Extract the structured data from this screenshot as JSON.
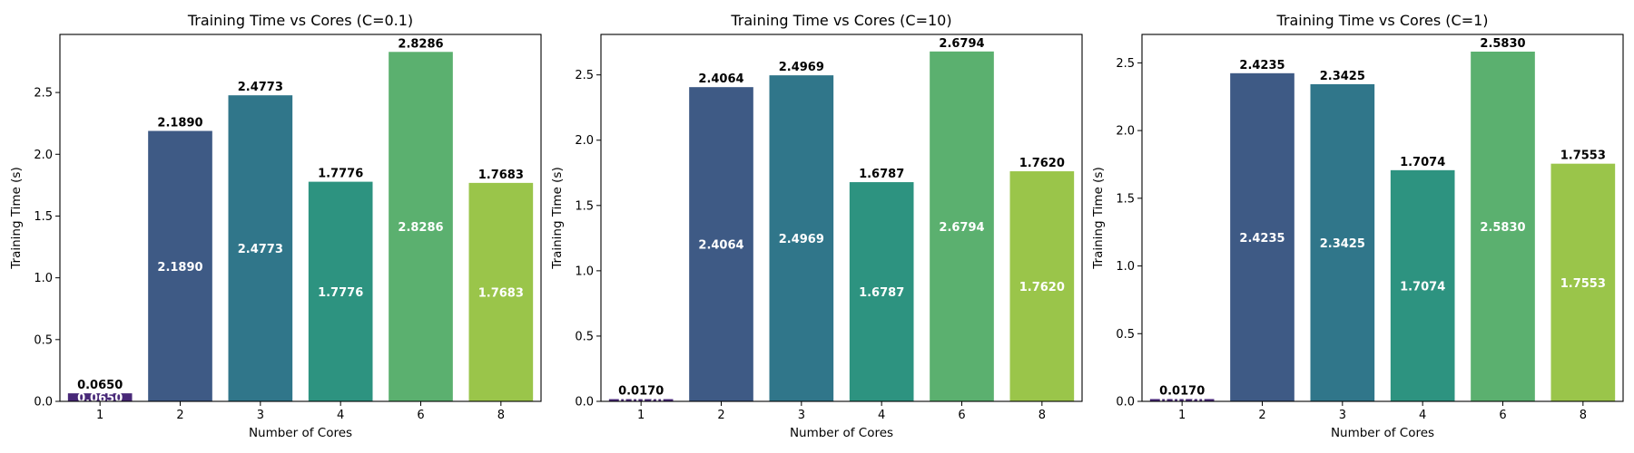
{
  "chart_data": [
    {
      "type": "bar",
      "title": "Training Time vs Cores (C=0.1)",
      "xlabel": "Number of Cores",
      "ylabel": "Training Time (s)",
      "categories": [
        "1",
        "2",
        "3",
        "4",
        "6",
        "8"
      ],
      "values": [
        0.065,
        2.189,
        2.4773,
        1.7776,
        2.8286,
        1.7683
      ],
      "value_labels": [
        "0.0650",
        "2.1890",
        "2.4773",
        "1.7776",
        "2.8286",
        "1.7683"
      ],
      "yticks": [
        "0.0",
        "0.5",
        "1.0",
        "1.5",
        "2.0",
        "2.5"
      ],
      "ylim": [
        0,
        2.97
      ],
      "grid": false
    },
    {
      "type": "bar",
      "title": "Training Time vs Cores (C=10)",
      "xlabel": "Number of Cores",
      "ylabel": "Training Time (s)",
      "categories": [
        "1",
        "2",
        "3",
        "4",
        "6",
        "8"
      ],
      "values": [
        0.017,
        2.4064,
        2.4969,
        1.6787,
        2.6794,
        1.762
      ],
      "value_labels": [
        "0.0170",
        "2.4064",
        "2.4969",
        "1.6787",
        "2.6794",
        "1.7620"
      ],
      "yticks": [
        "0.0",
        "0.5",
        "1.0",
        "1.5",
        "2.0",
        "2.5"
      ],
      "ylim": [
        0,
        2.81
      ],
      "grid": false
    },
    {
      "type": "bar",
      "title": "Training Time vs Cores (C=1)",
      "xlabel": "Number of Cores",
      "ylabel": "Training Time (s)",
      "categories": [
        "1",
        "2",
        "3",
        "4",
        "6",
        "8"
      ],
      "values": [
        0.017,
        2.4235,
        2.3425,
        1.7074,
        2.583,
        1.7553
      ],
      "value_labels": [
        "0.0170",
        "2.4235",
        "2.3425",
        "1.7074",
        "2.5830",
        "1.7553"
      ],
      "yticks": [
        "0.0",
        "0.5",
        "1.0",
        "1.5",
        "2.0",
        "2.5"
      ],
      "ylim": [
        0,
        2.71
      ],
      "grid": false
    }
  ],
  "colors": {
    "bars": [
      "#482878",
      "#3e5a85",
      "#30768a",
      "#2d9380",
      "#5bb06f",
      "#9ac54a"
    ],
    "spine": "#000000",
    "background": "#ffffff"
  }
}
